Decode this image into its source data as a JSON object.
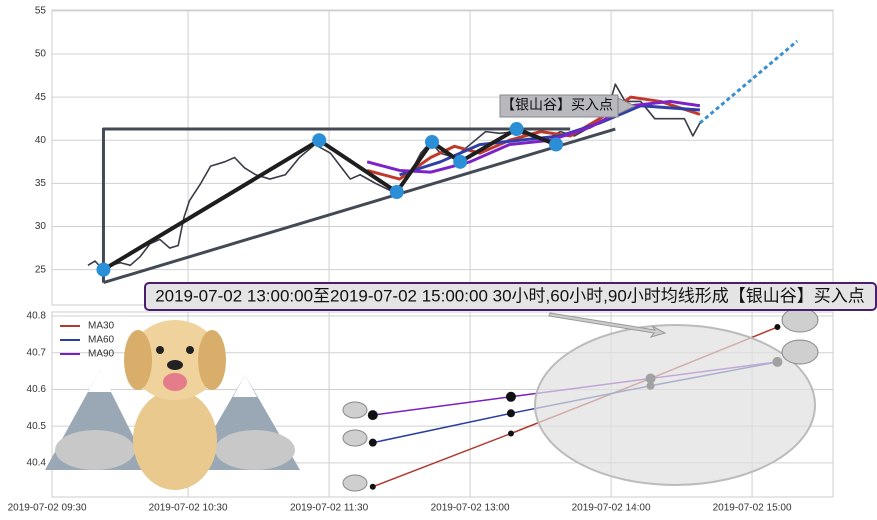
{
  "chart_data": [
    {
      "type": "line",
      "xlim": [
        0.035,
        5.574
      ],
      "ylim": [
        20.9,
        55.1
      ],
      "xticks": [
        0,
        1,
        2,
        3,
        4,
        5
      ],
      "yticks": [
        25,
        30,
        35,
        40,
        45,
        50,
        55
      ],
      "grid": true,
      "annotations": [
        "【银山谷】买入点",
        "2019-07-02 13:00:00至2019-07-02 15:00:00 30小时,60小时,90小时均线形成【银山谷】买入点"
      ],
      "series": [
        {
          "color": "#3a3a48",
          "width": 1.6,
          "x": [
            0.29,
            0.34,
            0.38,
            0.45,
            0.52,
            0.59,
            0.66,
            0.73,
            0.8,
            0.87,
            0.93,
            0.97,
            1.01,
            1.09,
            1.16,
            1.26,
            1.33,
            1.4,
            1.48,
            1.58,
            1.69,
            1.79,
            1.9,
            2.01,
            2.08,
            2.15,
            2.22,
            2.33,
            2.43,
            2.5,
            2.57,
            2.65,
            2.72,
            2.79,
            2.89,
            3.0,
            3.11,
            3.21,
            3.32,
            3.43,
            3.53,
            3.64,
            3.74,
            3.85,
            3.96,
            4.03,
            4.1,
            4.21,
            4.31,
            4.42,
            4.52,
            4.58,
            4.63
          ],
          "values": [
            25.5,
            26,
            25.3,
            25.5,
            25.8,
            25.5,
            26.5,
            28,
            28.5,
            27.5,
            27.8,
            31,
            33,
            35,
            37,
            37.5,
            38,
            36.8,
            36,
            35.5,
            36,
            38,
            39.5,
            38.5,
            37,
            35.5,
            36,
            35,
            34.2,
            34.5,
            36,
            38.5,
            39.8,
            38.5,
            38,
            39.5,
            41,
            40.8,
            41,
            40.5,
            40,
            41,
            40.5,
            41.5,
            42.5,
            46.5,
            44.5,
            44.5,
            42.5,
            42.5,
            42.5,
            40.5,
            42
          ]
        },
        {
          "color": "#c0392b",
          "width": 3,
          "x": [
            2.27,
            2.5,
            2.72,
            2.89,
            3.07,
            3.28,
            3.5,
            3.71,
            3.92,
            4.14,
            4.35,
            4.63
          ],
          "values": [
            36.5,
            35.5,
            38,
            39.3,
            38.5,
            40,
            41,
            40.5,
            42.5,
            45,
            44.5,
            43
          ]
        },
        {
          "color": "#2e3fa6",
          "width": 3,
          "x": [
            2.5,
            2.79,
            3.07,
            3.35,
            3.64,
            3.92,
            4.21,
            4.63
          ],
          "values": [
            36,
            37.5,
            39.5,
            40,
            40.5,
            42,
            44,
            43.5
          ]
        },
        {
          "color": "#7b22c9",
          "width": 3,
          "x": [
            2.27,
            2.5,
            2.72,
            3.0,
            3.28,
            3.57,
            3.85,
            4.14,
            4.42,
            4.63
          ],
          "values": [
            37.5,
            36.5,
            36.3,
            37.5,
            39.5,
            40,
            41.5,
            44,
            44.5,
            44
          ]
        },
        {
          "color": "#444a55",
          "width": 3,
          "x": [
            0.4,
            0.4,
            3.71
          ],
          "values": [
            23.5,
            41.3,
            41.3
          ]
        },
        {
          "color": "#444a55",
          "width": 3,
          "x": [
            0.4,
            4.03
          ],
          "values": [
            23.5,
            41.3
          ]
        },
        {
          "color": "#3a8fd0",
          "width": 3,
          "dashed": true,
          "x": [
            4.63,
            5.32
          ],
          "values": [
            42,
            51.5
          ]
        },
        {
          "color": "#1e1e1e",
          "width": 4,
          "markers": true,
          "marker_color": "#2a8fd6",
          "marker_size": 7,
          "x": [
            0.4,
            1.93,
            2.48,
            2.73,
            2.93,
            3.33,
            3.61
          ],
          "values": [
            25,
            40,
            34,
            39.8,
            37.5,
            41.3,
            39.5
          ]
        }
      ]
    },
    {
      "type": "line",
      "xlim": [
        0.035,
        5.574
      ],
      "ylim": [
        40.307,
        40.811
      ],
      "xticks": [
        {
          "value": 0,
          "label": "2019-07-02 09:30"
        },
        {
          "value": 1,
          "label": "2019-07-02 10:30"
        },
        {
          "value": 2,
          "label": "2019-07-02 11:30"
        },
        {
          "value": 3,
          "label": "2019-07-02 13:00"
        },
        {
          "value": 4,
          "label": "2019-07-02 14:00"
        },
        {
          "value": 5,
          "label": "2019-07-02 15:00"
        }
      ],
      "yticks": [
        40.4,
        40.5,
        40.6,
        40.7,
        40.8
      ],
      "grid": true,
      "legend": "upper left",
      "series": [
        {
          "name": "MA30",
          "color": "#b03a2e",
          "width": 1.5,
          "markers": true,
          "marker_color": "#111",
          "marker_size": 3,
          "x": [
            2.31,
            3.29,
            4.28,
            5.18
          ],
          "values": [
            40.335,
            40.48,
            40.63,
            40.77
          ]
        },
        {
          "name": "MA60",
          "color": "#2a3ea0",
          "width": 1.5,
          "markers": true,
          "marker_color": "#111",
          "marker_size": 4,
          "x": [
            2.31,
            3.29,
            4.28,
            5.18
          ],
          "values": [
            40.455,
            40.535,
            40.61,
            40.675
          ]
        },
        {
          "name": "MA90",
          "color": "#7a1fc0",
          "width": 1.5,
          "markers": true,
          "marker_color": "#111",
          "marker_size": 5,
          "x": [
            2.31,
            3.29,
            4.28,
            5.18
          ],
          "values": [
            40.53,
            40.58,
            40.63,
            40.675
          ]
        }
      ]
    }
  ]
}
